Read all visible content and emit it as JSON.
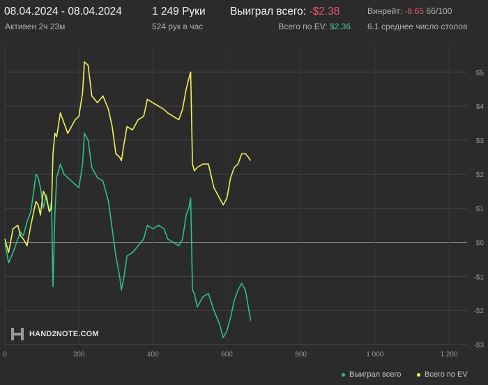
{
  "header": {
    "date_range": "08.04.2024 - 08.04.2024",
    "active_time": "Активен 2ч 23м",
    "hands": "1 249 Руки",
    "hands_per_hour": "524 рук в час",
    "won_label": "Выиграл всего:",
    "won_value": "-$2.38",
    "ev_label": "Всего по EV:",
    "ev_value": "$2.36",
    "winrate_label": "Винрейт:",
    "winrate_value": "-8.65",
    "winrate_unit": "бб/100",
    "avg_tables": "6.1 среднее число столов"
  },
  "logo": {
    "text": "HAND2NOTE.COM"
  },
  "colors": {
    "background": "#2b2b2b",
    "won": "#2fc088",
    "ev": "#f1f25a",
    "negative": "#e9536f",
    "grid": "#4a4a4a"
  },
  "chart_data": {
    "type": "line",
    "xlim": [
      0,
      1249
    ],
    "ylim": [
      -3.0,
      5.6
    ],
    "x_ticks": [
      0,
      200,
      400,
      600,
      800,
      1000,
      1200
    ],
    "x_tick_labels": [
      "0",
      "200",
      "400",
      "600",
      "800",
      "1 000",
      "1 200"
    ],
    "y_ticks": [
      5,
      4,
      3,
      2,
      1,
      0,
      -1,
      -2,
      -3
    ],
    "y_tick_labels": [
      "$5",
      "$4",
      "$3",
      "$2",
      "$1",
      "$0",
      "-$1",
      "-$2",
      "-$3"
    ],
    "grid": true,
    "legend_position": "bottom-right",
    "series": [
      {
        "name": "Выиграл всего",
        "color": "#2fc088",
        "points": [
          [
            0,
            0
          ],
          [
            10,
            -0.6
          ],
          [
            22,
            -0.3
          ],
          [
            35,
            0.1
          ],
          [
            42,
            0.3
          ],
          [
            50,
            0.2
          ],
          [
            60,
            0.6
          ],
          [
            70,
            0.9
          ],
          [
            78,
            1.5
          ],
          [
            84,
            2.0
          ],
          [
            90,
            1.9
          ],
          [
            96,
            1.6
          ],
          [
            104,
            1.0
          ],
          [
            112,
            1.4
          ],
          [
            120,
            0.9
          ],
          [
            126,
            1.2
          ],
          [
            130,
            -1.3
          ],
          [
            135,
            0.8
          ],
          [
            140,
            1.9
          ],
          [
            150,
            2.3
          ],
          [
            160,
            2.0
          ],
          [
            170,
            1.9
          ],
          [
            180,
            1.8
          ],
          [
            190,
            1.7
          ],
          [
            200,
            1.6
          ],
          [
            210,
            2.3
          ],
          [
            215,
            3.2
          ],
          [
            225,
            3.0
          ],
          [
            235,
            2.2
          ],
          [
            250,
            1.9
          ],
          [
            265,
            1.8
          ],
          [
            280,
            1.2
          ],
          [
            290,
            0.4
          ],
          [
            300,
            -0.4
          ],
          [
            310,
            -1.0
          ],
          [
            315,
            -1.4
          ],
          [
            322,
            -1.0
          ],
          [
            330,
            -0.4
          ],
          [
            345,
            -0.3
          ],
          [
            360,
            -0.1
          ],
          [
            375,
            0.1
          ],
          [
            385,
            0.5
          ],
          [
            400,
            0.4
          ],
          [
            415,
            0.5
          ],
          [
            430,
            0.4
          ],
          [
            440,
            0.1
          ],
          [
            455,
            0.0
          ],
          [
            470,
            -0.1
          ],
          [
            480,
            0.1
          ],
          [
            490,
            0.8
          ],
          [
            497,
            1.0
          ],
          [
            502,
            1.3
          ],
          [
            507,
            -1.4
          ],
          [
            512,
            -1.5
          ],
          [
            520,
            -1.9
          ],
          [
            535,
            -1.6
          ],
          [
            550,
            -1.5
          ],
          [
            565,
            -2.0
          ],
          [
            580,
            -2.4
          ],
          [
            590,
            -2.8
          ],
          [
            600,
            -2.6
          ],
          [
            610,
            -2.2
          ],
          [
            620,
            -1.7
          ],
          [
            630,
            -1.4
          ],
          [
            640,
            -1.2
          ],
          [
            650,
            -1.4
          ],
          [
            658,
            -1.9
          ],
          [
            664,
            -2.3
          ]
        ]
      },
      {
        "name": "Всего по EV",
        "color": "#f1f25a",
        "points": [
          [
            0,
            0.1
          ],
          [
            10,
            -0.3
          ],
          [
            22,
            0.4
          ],
          [
            35,
            0.5
          ],
          [
            42,
            0.2
          ],
          [
            50,
            0.1
          ],
          [
            60,
            -0.1
          ],
          [
            70,
            0.5
          ],
          [
            78,
            0.9
          ],
          [
            84,
            1.2
          ],
          [
            90,
            1.1
          ],
          [
            96,
            0.8
          ],
          [
            104,
            1.5
          ],
          [
            112,
            1.3
          ],
          [
            120,
            0.9
          ],
          [
            126,
            1.0
          ],
          [
            130,
            2.6
          ],
          [
            135,
            3.2
          ],
          [
            140,
            3.1
          ],
          [
            150,
            3.8
          ],
          [
            160,
            3.5
          ],
          [
            170,
            3.2
          ],
          [
            180,
            3.4
          ],
          [
            190,
            3.6
          ],
          [
            200,
            3.7
          ],
          [
            210,
            4.4
          ],
          [
            215,
            5.3
          ],
          [
            225,
            5.2
          ],
          [
            235,
            4.3
          ],
          [
            250,
            4.1
          ],
          [
            265,
            4.3
          ],
          [
            280,
            3.9
          ],
          [
            290,
            3.4
          ],
          [
            300,
            2.6
          ],
          [
            310,
            2.5
          ],
          [
            315,
            2.4
          ],
          [
            322,
            2.9
          ],
          [
            330,
            3.4
          ],
          [
            345,
            3.3
          ],
          [
            360,
            3.6
          ],
          [
            375,
            3.7
          ],
          [
            385,
            4.2
          ],
          [
            400,
            4.1
          ],
          [
            415,
            4.0
          ],
          [
            430,
            3.9
          ],
          [
            440,
            3.8
          ],
          [
            455,
            3.7
          ],
          [
            470,
            3.6
          ],
          [
            480,
            3.9
          ],
          [
            490,
            4.5
          ],
          [
            497,
            4.8
          ],
          [
            502,
            5.0
          ],
          [
            507,
            2.3
          ],
          [
            512,
            2.1
          ],
          [
            520,
            2.2
          ],
          [
            535,
            2.3
          ],
          [
            550,
            2.3
          ],
          [
            565,
            1.6
          ],
          [
            580,
            1.3
          ],
          [
            590,
            1.1
          ],
          [
            600,
            1.3
          ],
          [
            610,
            1.9
          ],
          [
            620,
            2.2
          ],
          [
            630,
            2.3
          ],
          [
            640,
            2.6
          ],
          [
            650,
            2.6
          ],
          [
            658,
            2.5
          ],
          [
            664,
            2.4
          ]
        ]
      }
    ]
  }
}
